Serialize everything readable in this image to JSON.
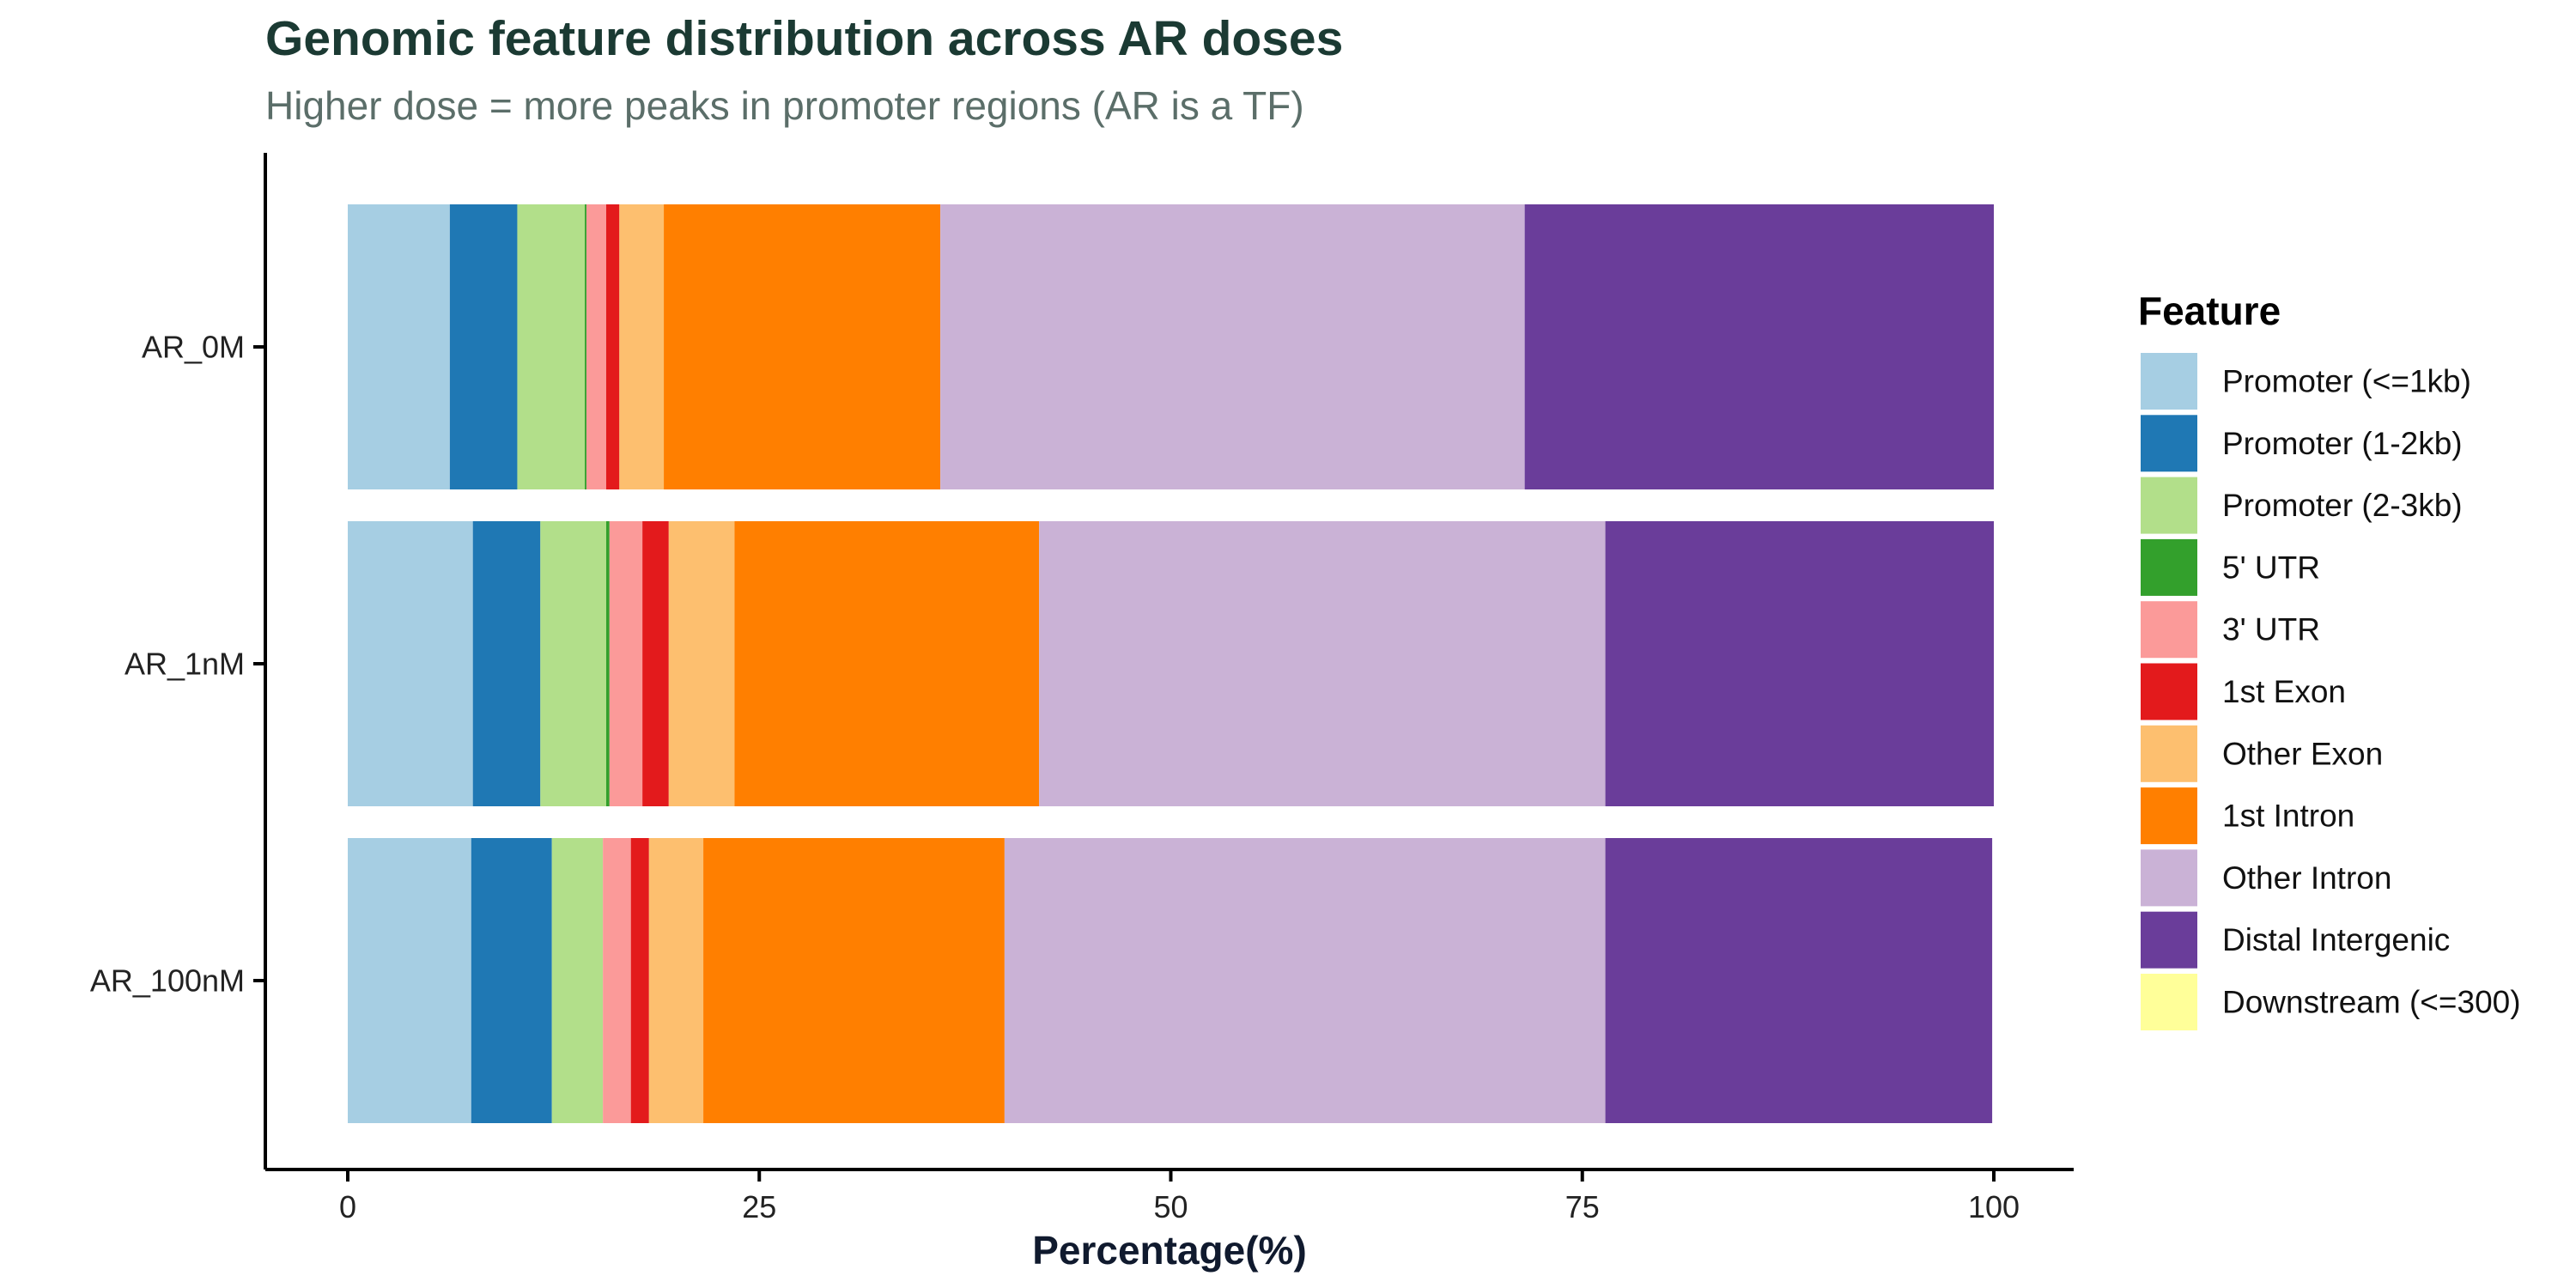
{
  "title": "Genomic feature distribution across AR doses",
  "subtitle": "Higher dose = more peaks in promoter regions (AR is a TF)",
  "chart_data": {
    "type": "bar",
    "orientation": "horizontal",
    "stacked": true,
    "categories": [
      "AR_0M",
      "AR_1nM",
      "AR_100nM"
    ],
    "xlabel": "Percentage(%)",
    "ylabel": "",
    "xlim": [
      0,
      100
    ],
    "xticks": [
      0,
      25,
      50,
      75,
      100
    ],
    "grid": false,
    "legend": {
      "title": "Feature",
      "position": "right"
    },
    "series": [
      {
        "name": "Promoter (<=1kb)",
        "color": "#A6CEE3",
        "values": [
          6.2,
          7.6,
          7.5
        ]
      },
      {
        "name": "Promoter (1-2kb)",
        "color": "#1F78B4",
        "values": [
          4.1,
          4.1,
          4.9
        ]
      },
      {
        "name": "Promoter (2-3kb)",
        "color": "#B2DF8A",
        "values": [
          4.1,
          4.0,
          3.1
        ]
      },
      {
        "name": "5' UTR",
        "color": "#33A02C",
        "values": [
          0.1,
          0.2,
          0.0
        ]
      },
      {
        "name": "3' UTR",
        "color": "#FB9A99",
        "values": [
          1.2,
          2.0,
          1.7
        ]
      },
      {
        "name": "1st Exon",
        "color": "#E31A1C",
        "values": [
          0.8,
          1.6,
          1.1
        ]
      },
      {
        "name": "Other Exon",
        "color": "#FDBF6F",
        "values": [
          2.7,
          4.0,
          3.3
        ]
      },
      {
        "name": "1st Intron",
        "color": "#FF7F00",
        "values": [
          16.8,
          18.5,
          18.3
        ]
      },
      {
        "name": "Other Intron",
        "color": "#CAB2D6",
        "values": [
          35.5,
          34.4,
          36.5
        ]
      },
      {
        "name": "Distal Intergenic",
        "color": "#6A3D9A",
        "values": [
          28.5,
          23.6,
          23.5
        ]
      },
      {
        "name": "Downstream (<=300)",
        "color": "#FFFF99",
        "values": [
          0.0,
          0.0,
          0.0
        ]
      }
    ]
  }
}
